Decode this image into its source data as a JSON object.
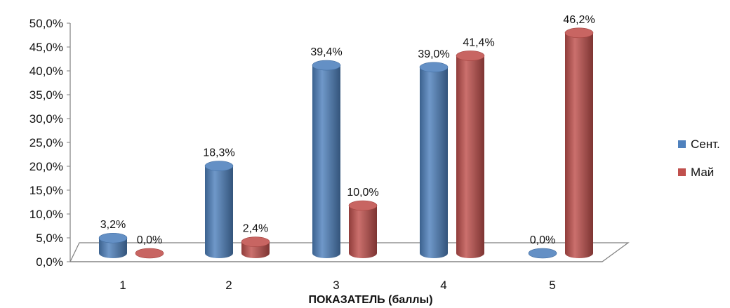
{
  "chart_data": {
    "type": "bar",
    "title": "",
    "xlabel": "ПОКАЗАТЕЛЬ (баллы)",
    "ylabel": "",
    "categories": [
      "1",
      "2",
      "3",
      "4",
      "5"
    ],
    "ylim": [
      0,
      50
    ],
    "yticks": [
      "0,0%",
      "5,0%",
      "10,0%",
      "15,0%",
      "20,0%",
      "25,0%",
      "30,0%",
      "35,0%",
      "40,0%",
      "45,0%",
      "50,0%"
    ],
    "legend_position": "right",
    "grid": false,
    "style": "3d-cylinder",
    "series": [
      {
        "name": "Сент.",
        "color": "#4f81bd",
        "values": [
          3.2,
          18.3,
          39.4,
          39.0,
          0.0
        ],
        "labels": [
          "3,2%",
          "18,3%",
          "39,4%",
          "39,0%",
          "0,0%"
        ]
      },
      {
        "name": "Май",
        "color": "#c0504d",
        "values": [
          0.0,
          2.4,
          10.0,
          41.4,
          46.2
        ],
        "labels": [
          "0,0%",
          "2,4%",
          "10,0%",
          "41,4%",
          "46,2%"
        ]
      }
    ]
  }
}
